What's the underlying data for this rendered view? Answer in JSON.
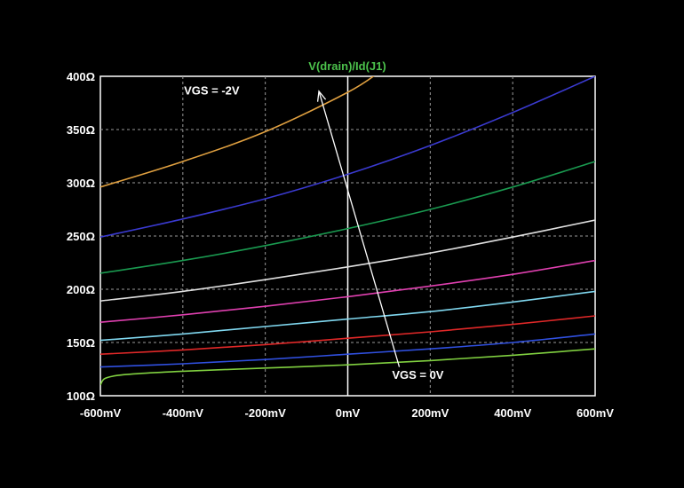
{
  "chart_data": {
    "type": "line",
    "title": "V(drain)/Id(J1)",
    "title_color": "#4cc24c",
    "xlabel": "",
    "ylabel": "",
    "xlim": [
      -600,
      600
    ],
    "ylim": [
      100,
      400
    ],
    "x_ticks": [
      -600,
      -400,
      -200,
      0,
      200,
      400,
      600
    ],
    "x_tick_labels": [
      "-600mV",
      "-400mV",
      "-200mV",
      "0mV",
      "200mV",
      "400mV",
      "600mV"
    ],
    "y_ticks": [
      100,
      150,
      200,
      250,
      300,
      350,
      400
    ],
    "y_tick_labels": [
      "100Ω",
      "150Ω",
      "200Ω",
      "250Ω",
      "300Ω",
      "350Ω",
      "400Ω"
    ],
    "grid": true,
    "background": "#000000",
    "series": [
      {
        "color": "#e0a040",
        "x": [
          -600,
          -400,
          -200,
          0,
          80
        ],
        "y": [
          296,
          320,
          348,
          385,
          405
        ]
      },
      {
        "color": "#3a3ad0",
        "x": [
          -600,
          -400,
          -200,
          0,
          200,
          400,
          600
        ],
        "y": [
          249,
          266,
          285,
          308,
          335,
          366,
          400
        ]
      },
      {
        "color": "#1a9a50",
        "x": [
          -600,
          -400,
          -200,
          0,
          200,
          400,
          600
        ],
        "y": [
          215,
          227,
          241,
          257,
          275,
          296,
          320
        ]
      },
      {
        "color": "#e0e0e0",
        "x": [
          -600,
          -400,
          -200,
          0,
          200,
          400,
          600
        ],
        "y": [
          189,
          198,
          209,
          221,
          234,
          249,
          265
        ]
      },
      {
        "color": "#e040b0",
        "x": [
          -600,
          -400,
          -200,
          0,
          200,
          400,
          600
        ],
        "y": [
          169,
          176,
          184,
          193,
          203,
          214,
          227
        ]
      },
      {
        "color": "#80d8f0",
        "x": [
          -600,
          -400,
          -200,
          0,
          200,
          400,
          600
        ],
        "y": [
          152,
          158,
          165,
          172,
          179,
          188,
          198
        ]
      },
      {
        "color": "#e02828",
        "x": [
          -600,
          -400,
          -200,
          0,
          200,
          400,
          600
        ],
        "y": [
          139,
          143,
          148,
          154,
          160,
          167,
          175
        ]
      },
      {
        "color": "#3050e0",
        "x": [
          -600,
          -400,
          -200,
          0,
          200,
          400,
          600
        ],
        "y": [
          127,
          130,
          134,
          139,
          144,
          150,
          158
        ]
      },
      {
        "color": "#80d040",
        "x": [
          -600,
          -590,
          -560,
          -500,
          -400,
          -200,
          0,
          200,
          400,
          600
        ],
        "y": [
          110,
          116,
          119,
          121,
          123,
          126,
          129,
          133,
          138,
          144
        ]
      }
    ],
    "annotations": [
      {
        "text": "VGS = -2V",
        "x": -330,
        "y": 383
      },
      {
        "text": "VGS = 0V",
        "x": 170,
        "y": 116
      }
    ],
    "arrow": {
      "from": [
        125,
        127
      ],
      "to": [
        -70,
        386
      ],
      "color": "#ffffff"
    }
  }
}
